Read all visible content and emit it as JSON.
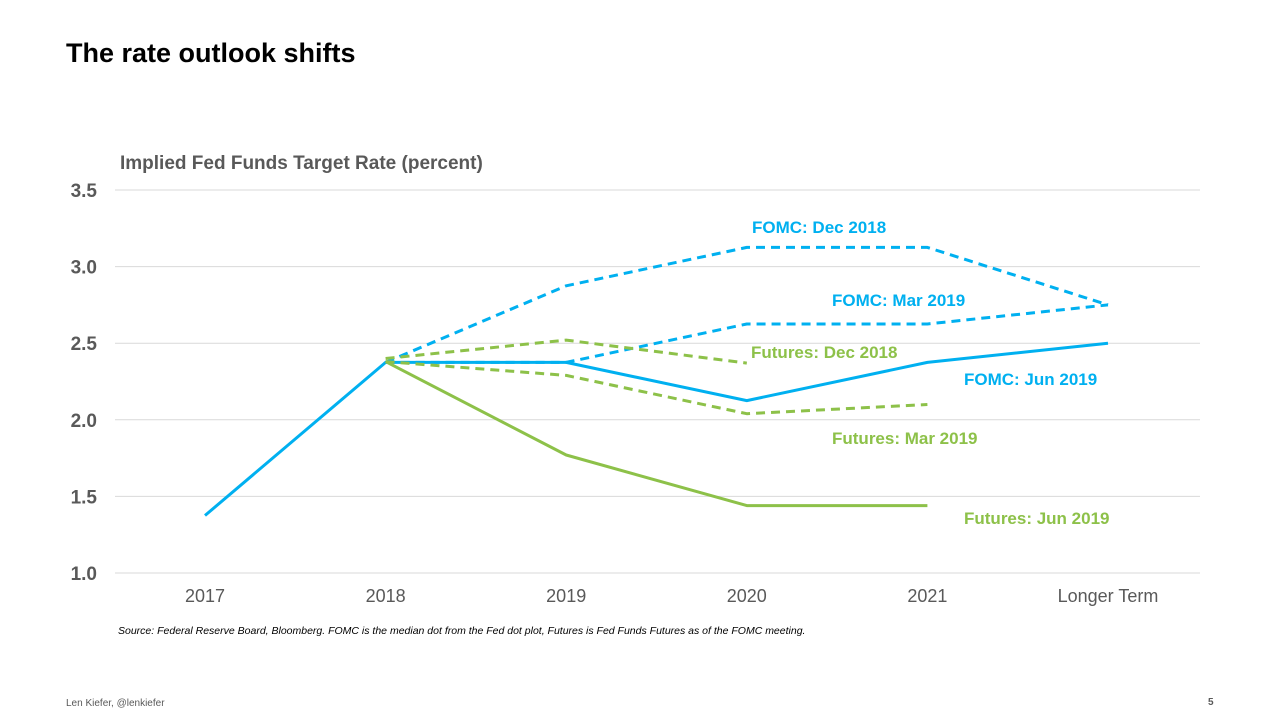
{
  "slide": {
    "title": "The rate outlook shifts",
    "source": "Source: Federal Reserve Board, Bloomberg. FOMC is the median dot from the Fed dot plot, Futures is Fed Funds Futures as of the FOMC meeting.",
    "author": "Len Kiefer, @lenkiefer",
    "page_number": "5"
  },
  "colors": {
    "fomc": "#00B0F0",
    "futures": "#8DC149",
    "grid": "#D9D9D9",
    "tick_text": "#595959"
  },
  "chart_data": {
    "type": "line",
    "title": "Implied Fed Funds Target Rate (percent)",
    "categories": [
      "2017",
      "2018",
      "2019",
      "2020",
      "2021",
      "Longer Term"
    ],
    "ylim": [
      1.0,
      3.5
    ],
    "yticks": [
      "1.0",
      "1.5",
      "2.0",
      "2.5",
      "3.0",
      "3.5"
    ],
    "grid": true,
    "series": [
      {
        "name": "FOMC: Dec 2018",
        "style": "dashed",
        "color": "#00B0F0",
        "values": [
          null,
          2.375,
          2.875,
          3.125,
          3.125,
          2.75
        ]
      },
      {
        "name": "FOMC: Mar 2019",
        "style": "dashed",
        "color": "#00B0F0",
        "values": [
          null,
          2.375,
          2.375,
          2.625,
          2.625,
          2.75
        ]
      },
      {
        "name": "FOMC: Jun 2019",
        "style": "solid",
        "color": "#00B0F0",
        "values": [
          1.375,
          2.375,
          2.375,
          2.125,
          2.375,
          2.5
        ]
      },
      {
        "name": "Futures: Dec 2018",
        "style": "dashed",
        "color": "#8DC149",
        "values": [
          null,
          2.4,
          2.52,
          2.37,
          null,
          null
        ]
      },
      {
        "name": "Futures: Mar 2019",
        "style": "dashed",
        "color": "#8DC149",
        "values": [
          null,
          2.38,
          2.29,
          2.04,
          2.1,
          null
        ]
      },
      {
        "name": "Futures: Jun 2019",
        "style": "solid",
        "color": "#8DC149",
        "values": [
          null,
          2.38,
          1.77,
          1.44,
          1.44,
          null
        ]
      }
    ]
  }
}
